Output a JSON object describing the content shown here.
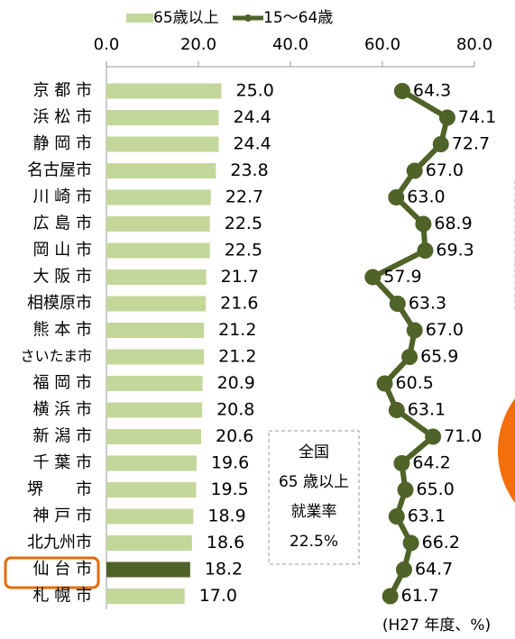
{
  "chart_data": {
    "type": "bar_line",
    "categories": [
      "京 都 市",
      "浜 松 市",
      "静 岡 市",
      "名古屋市",
      "川 崎 市",
      "広 島 市",
      "岡 山 市",
      "大 阪 市",
      "相模原市",
      "熊 本 市",
      "さいたま市",
      "福 岡 市",
      "横 浜 市",
      "新 潟 市",
      "千 葉 市",
      "堺　　市",
      "神 戸 市",
      "北九州市",
      "仙 台 市",
      "札 幌 市"
    ],
    "series": [
      {
        "name": "65歳以上",
        "color": "#c4d79b",
        "colors": [
          "#c4d79b",
          "#c4d79b",
          "#c4d79b",
          "#c4d79b",
          "#c4d79b",
          "#c4d79b",
          "#c4d79b",
          "#c4d79b",
          "#c4d79b",
          "#c4d79b",
          "#c4d79b",
          "#c4d79b",
          "#c4d79b",
          "#c4d79b",
          "#c4d79b",
          "#c4d79b",
          "#c4d79b",
          "#c4d79b",
          "#4f6228",
          "#c4d79b"
        ],
        "values": [
          25.0,
          24.4,
          24.4,
          23.8,
          22.7,
          22.5,
          22.5,
          21.7,
          21.6,
          21.2,
          21.2,
          20.9,
          20.8,
          20.6,
          19.6,
          19.5,
          18.9,
          18.6,
          18.2,
          17.0
        ],
        "value_labels": [
          "25.0",
          "24.4",
          "24.4",
          "23.8",
          "22.7",
          "22.5",
          "22.5",
          "21.7",
          "21.6",
          "21.2",
          "21.2",
          "20.9",
          "20.8",
          "20.6",
          "19.6",
          "19.5",
          "18.9",
          "18.6",
          "18.2",
          "17.0"
        ]
      },
      {
        "name": "15～64歳",
        "color": "#4f6228",
        "values": [
          64.3,
          74.1,
          72.7,
          67.0,
          63.0,
          68.9,
          69.3,
          57.9,
          63.3,
          67.0,
          65.9,
          60.5,
          63.1,
          71.0,
          64.2,
          65.0,
          63.1,
          66.2,
          64.7,
          61.7
        ],
        "value_labels": [
          "64.3",
          "74.1",
          "72.7",
          "67.0",
          "63.0",
          "68.9",
          "69.3",
          "57.9",
          "63.3",
          "67.0",
          "65.9",
          "60.5",
          "63.1",
          "71.0",
          "64.2",
          "65.0",
          "63.1",
          "66.2",
          "64.7",
          "61.7"
        ]
      }
    ],
    "xlim": [
      0,
      80
    ],
    "xticks": [
      {
        "value": 0,
        "label": "0.0"
      },
      {
        "value": 20,
        "label": "20.0"
      },
      {
        "value": 40,
        "label": "40.0"
      },
      {
        "value": 60,
        "label": "60.0"
      },
      {
        "value": 80,
        "label": "80.0"
      }
    ],
    "annotation": [
      "全国",
      "65 歳以上",
      "就業率",
      "22.5%"
    ],
    "note": "(H27 年度、%)"
  }
}
